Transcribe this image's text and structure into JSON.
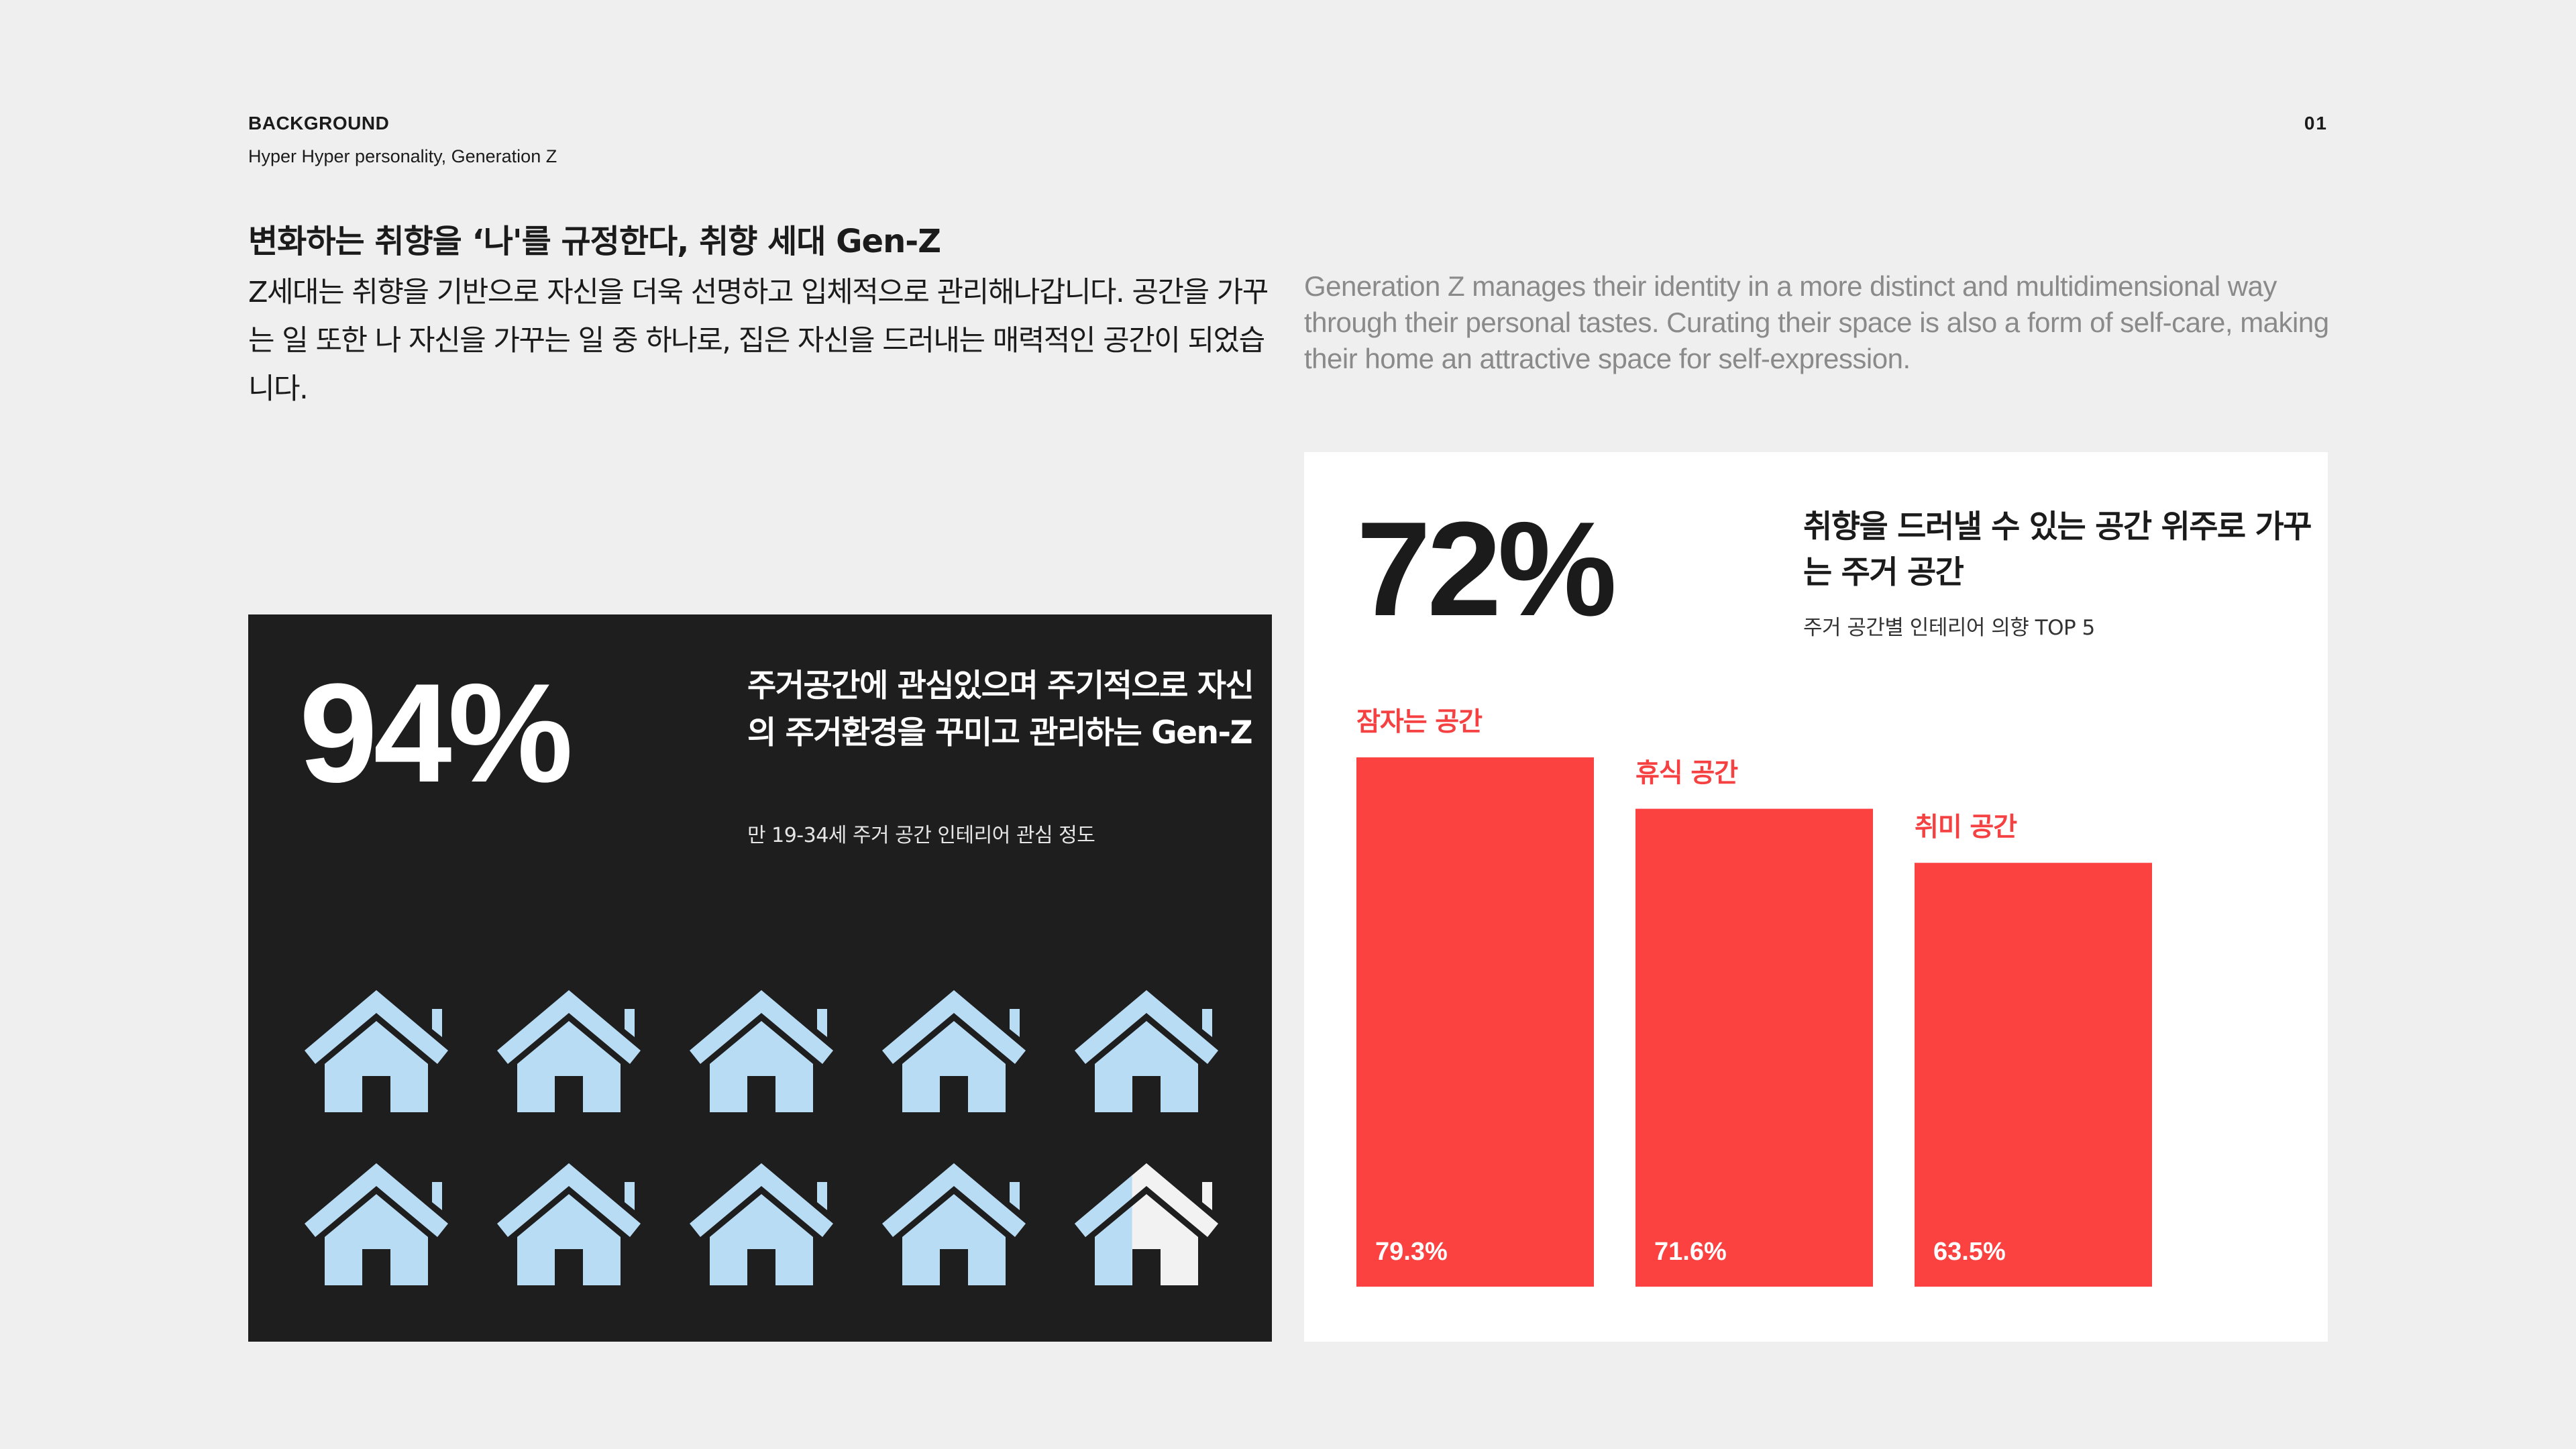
{
  "header": {
    "section_label": "BACKGROUND",
    "section_subtitle": "Hyper Hyper personality, Generation Z",
    "page_number": "01"
  },
  "intro": {
    "headline": "변화하는 취향을 ‘나'를 규정한다, 취향 세대 Gen-Z",
    "body_korean": "Z세대는 취향을 기반으로 자신을 더욱 선명하고 입체적으로 관리해나갑니다. 공간을 가꾸는 일 또한 나 자신을 가꾸는 일 중 하나로, 집은 자신을 드러내는 매력적인 공간이 되었습니다.",
    "body_english": "Generation Z manages their identity in a more distinct and multidimensional way through their personal tastes. Curating their space is also a form of self-care, making their home an attractive space for self-expression."
  },
  "dark_panel": {
    "stat": "94%",
    "title": "주거공간에 관심있으며 주기적으로 자신의 주거환경을 꾸미고 관리하는 Gen-Z",
    "caption": "만 19-34세 주거 공간 인테리어 관심 정도",
    "houses": {
      "count": 10,
      "filled_fraction": 0.94,
      "icon": "house-icon",
      "fill_color": "#b9dcf5",
      "empty_color": "#f2f2f2"
    }
  },
  "white_panel": {
    "stat": "72%",
    "title": "취향을 드러낼 수 있는 공간 위주로 가꾸는 주거 공간",
    "caption": "주거 공간별 인테리어 의향 TOP 5"
  },
  "chart_data": {
    "type": "bar",
    "categories": [
      "잠자는 공간",
      "휴식 공간",
      "취미 공간"
    ],
    "values": [
      79.3,
      71.6,
      63.5
    ],
    "value_labels": [
      "79.3%",
      "71.6%",
      "63.5%"
    ],
    "bar_color": "#fc4141",
    "grid": false
  }
}
